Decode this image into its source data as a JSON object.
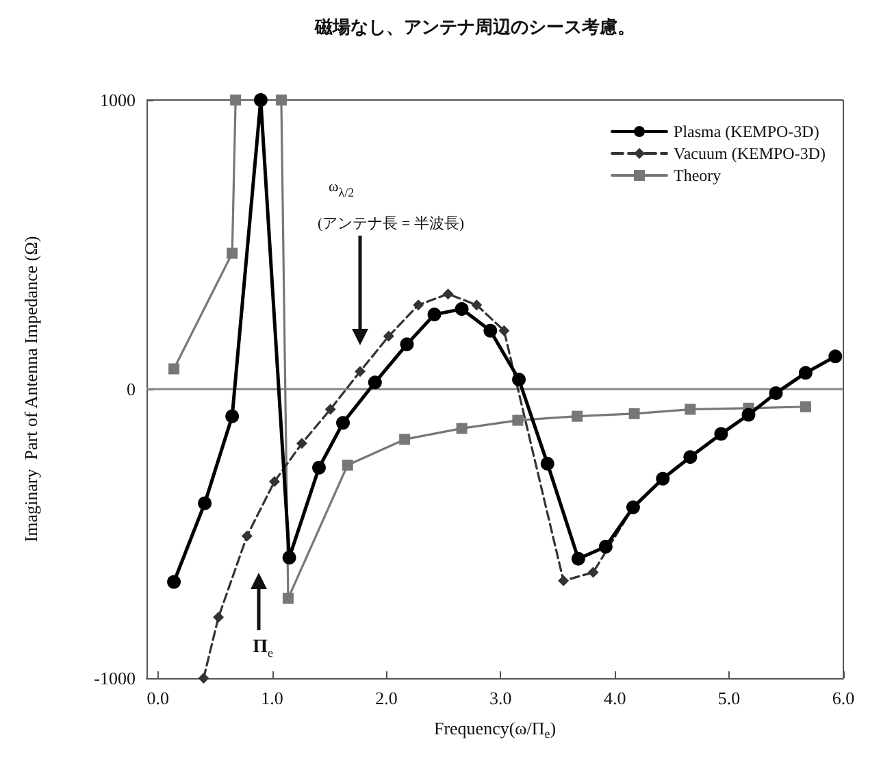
{
  "chart_data": {
    "type": "line",
    "title": "磁場なし、アンテナ周辺のシース考慮。",
    "xlabel": "Frequency(ω/Π$_{e}$)",
    "ylabel": "Imaginary  Part of Antenna Impedance (Ω)",
    "xlim": [
      -0.1,
      6
    ],
    "xticks": [
      {
        "value": 0,
        "label": "0.0"
      },
      {
        "value": 1,
        "label": "1.0"
      },
      {
        "value": 2,
        "label": "2.0"
      },
      {
        "value": 3,
        "label": "3.0"
      },
      {
        "value": 4,
        "label": "4.0"
      },
      {
        "value": 5,
        "label": "5.0"
      },
      {
        "value": 6,
        "label": "6.0"
      }
    ],
    "ylim": [
      -1000,
      1000
    ],
    "yticks": [
      -1000,
      0,
      1000
    ],
    "grid": false,
    "legend": "top right",
    "ref_lines": [
      {
        "axis": "y",
        "value": 0,
        "color": "#888888"
      }
    ],
    "annotations": [
      "ω$_{λ/2}$",
      "(アンテナ長 = 半波長)",
      "Π$_{e}$"
    ],
    "series": [
      {
        "name": "Plasma (KEMPO-3D)",
        "color": "#000000",
        "marker": "circle",
        "line_style": "solid",
        "x": [
          0.14,
          0.41,
          0.65,
          0.9,
          1.15,
          1.41,
          1.62,
          1.9,
          2.18,
          2.42,
          2.66,
          2.91,
          3.16,
          3.41,
          3.68,
          3.92,
          4.16,
          4.42,
          4.66,
          4.93,
          5.17,
          5.41,
          5.67,
          5.93
        ],
        "values": [
          -667,
          -395,
          -94,
          1000,
          -583,
          -272,
          -117,
          23,
          155,
          258,
          277,
          202,
          33,
          -258,
          -587,
          -545,
          -409,
          -310,
          -235,
          -155,
          -89,
          -14,
          56,
          113
        ]
      },
      {
        "name": "Vacuum (KEMPO-3D)",
        "color": "#333333",
        "marker": "diamond",
        "line_style": "dashed",
        "x": [
          0.4,
          0.53,
          0.78,
          1.02,
          1.26,
          1.51,
          1.77,
          2.02,
          2.28,
          2.54,
          2.79,
          3.03,
          3.55,
          3.81,
          4.16,
          4.42,
          4.66,
          4.93,
          5.17,
          5.41,
          5.67,
          5.93
        ],
        "values": [
          -1000,
          -789,
          -508,
          -320,
          -188,
          -70,
          61,
          183,
          291,
          329,
          291,
          202,
          -663,
          -634,
          -409,
          -310,
          -235,
          -155,
          -89,
          -14,
          56,
          113
        ]
      },
      {
        "name": "Theory",
        "color": "#777777",
        "marker": "square",
        "line_style": "solid",
        "x": [
          0.14,
          0.65,
          0.68,
          0.9,
          1.08,
          1.14,
          1.66,
          2.16,
          2.66,
          3.15,
          3.67,
          4.17,
          4.66,
          5.17,
          5.67
        ],
        "values": [
          70,
          470,
          1000,
          null,
          1000,
          -724,
          -263,
          -174,
          -136,
          -108,
          -94,
          -85,
          -70,
          -66,
          -61
        ]
      }
    ]
  }
}
